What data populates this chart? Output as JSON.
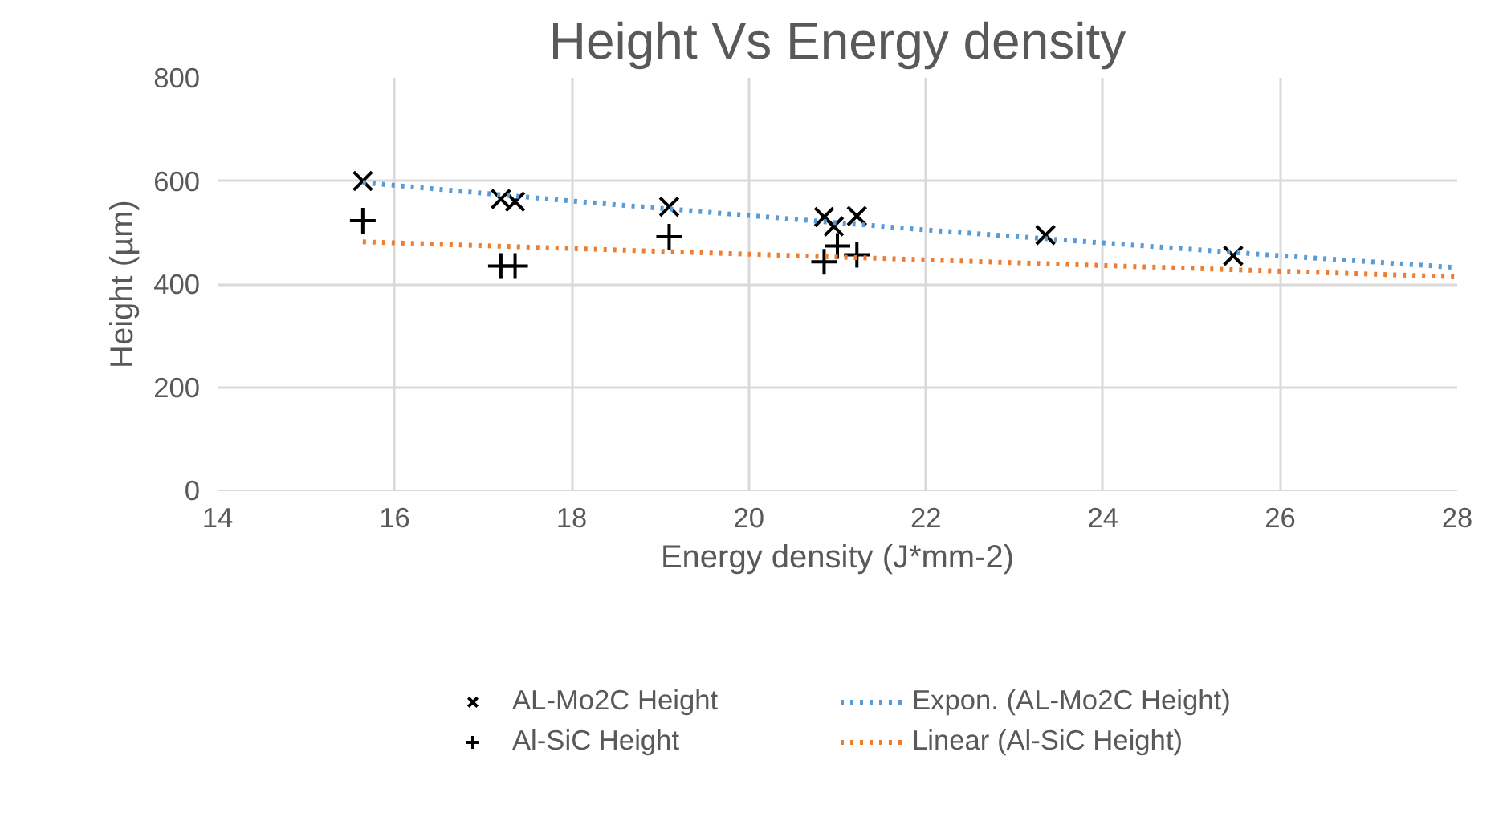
{
  "chart_data": {
    "type": "scatter",
    "title": "Height Vs Energy density",
    "xlabel": "Energy density (J*mm-2)",
    "ylabel": "Height (µm)",
    "xlim": [
      14,
      28
    ],
    "xticks": [
      14,
      16,
      18,
      20,
      22,
      24,
      26,
      28
    ],
    "ylim": [
      0,
      800
    ],
    "yticks": [
      0,
      200,
      400,
      600,
      800
    ],
    "grid": true,
    "legend": "bottom",
    "series": [
      {
        "name": "AL-Mo2C Height",
        "type": "scatter",
        "marker": "x",
        "color": "#000000",
        "x": [
          15.64,
          17.2,
          17.36,
          19.1,
          20.85,
          20.96,
          21.22,
          23.35,
          25.47
        ],
        "values": [
          600,
          565,
          560,
          550,
          530,
          512,
          532,
          495,
          455
        ]
      },
      {
        "name": "Al-SiC Height",
        "type": "scatter",
        "marker": "cross",
        "color": "#000000",
        "x": [
          15.64,
          17.2,
          17.36,
          19.1,
          20.85,
          21.0,
          21.22
        ],
        "values": [
          523,
          435,
          435,
          492,
          443,
          474,
          457
        ]
      },
      {
        "name": "Expon. (AL-Mo2C Height)",
        "type": "line",
        "line_style": "dotted",
        "color": "#5b9bd5",
        "x": [
          15.64,
          18,
          20,
          22,
          24,
          26,
          28
        ],
        "values": [
          597,
          561,
          533,
          505,
          480,
          455,
          432
        ]
      },
      {
        "name": "Linear (Al-SiC Height)",
        "type": "line",
        "line_style": "dotted",
        "color": "#ed7d31",
        "x": [
          15.64,
          28
        ],
        "values": [
          482,
          414
        ]
      }
    ]
  }
}
